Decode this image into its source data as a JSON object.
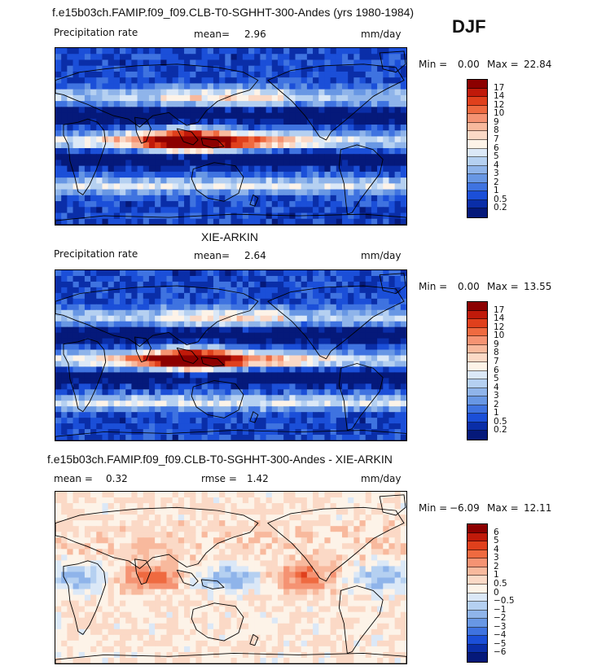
{
  "header": {
    "top_title": "f.e15b03ch.FAMIP.f09_f09.CLB-T0-SGHHT-300-Andes (yrs 1980-1984)",
    "season": "DJF"
  },
  "panels": [
    {
      "id": "model",
      "title": "",
      "left_label": "Precipitation rate",
      "mean_label": "mean=",
      "mean_value": "2.96",
      "units": "mm/day",
      "min_label": "Min =",
      "min_value": "0.00",
      "max_label": "Max =",
      "max_value": "22.84",
      "colorbar_levels": [
        "17",
        "14",
        "12",
        "10",
        "9",
        "8",
        "7",
        "6",
        "5",
        "4",
        "3",
        "2",
        "1",
        "0.5",
        "0.2"
      ],
      "colorbar_colors": [
        "#8c0000",
        "#c01a0a",
        "#e0401c",
        "#ef6a40",
        "#f59373",
        "#f8b99d",
        "#fbd9c6",
        "#fdf3e8",
        "#dbe8f7",
        "#b5d0f1",
        "#8fb4ea",
        "#6897e4",
        "#3f73e0",
        "#1b4fd8",
        "#0a2ea8",
        "#05197a"
      ],
      "global_mean": 2.96,
      "global_min": 0.0,
      "global_max": 22.84
    },
    {
      "id": "obs",
      "title": "XIE-ARKIN",
      "left_label": "Precipitation rate",
      "mean_label": "mean=",
      "mean_value": "2.64",
      "units": "mm/day",
      "min_label": "Min =",
      "min_value": "0.00",
      "max_label": "Max =",
      "max_value": "13.55",
      "colorbar_levels": [
        "17",
        "14",
        "12",
        "10",
        "9",
        "8",
        "7",
        "6",
        "5",
        "4",
        "3",
        "2",
        "1",
        "0.5",
        "0.2"
      ],
      "colorbar_colors": [
        "#8c0000",
        "#c01a0a",
        "#e0401c",
        "#ef6a40",
        "#f59373",
        "#f8b99d",
        "#fbd9c6",
        "#fdf3e8",
        "#dbe8f7",
        "#b5d0f1",
        "#8fb4ea",
        "#6897e4",
        "#3f73e0",
        "#1b4fd8",
        "#0a2ea8",
        "#05197a"
      ],
      "global_mean": 2.64,
      "global_min": 0.0,
      "global_max": 13.55
    },
    {
      "id": "diff",
      "title": "f.e15b03ch.FAMIP.f09_f09.CLB-T0-SGHHT-300-Andes - XIE-ARKIN",
      "left_label": "mean =",
      "mean_label": "",
      "mean_value": "0.32",
      "rmse_label": "rmse =",
      "rmse_value": "1.42",
      "units": "mm/day",
      "min_label": "Min =",
      "min_value": "−6.09",
      "max_label": "Max =",
      "max_value": "12.11",
      "colorbar_levels": [
        "6",
        "5",
        "4",
        "3",
        "2",
        "1",
        "0.5",
        "0",
        "−0.5",
        "−1",
        "−2",
        "−3",
        "−4",
        "−5",
        "−6"
      ],
      "colorbar_colors": [
        "#8c0000",
        "#c01a0a",
        "#e0401c",
        "#ef6a40",
        "#f59373",
        "#f8b99d",
        "#fbd9c6",
        "#fdf3e8",
        "#dbe8f7",
        "#b5d0f1",
        "#8fb4ea",
        "#6897e4",
        "#3f73e0",
        "#1b4fd8",
        "#0a2ea8",
        "#05197a"
      ],
      "global_mean": 0.32,
      "rmse": 1.42,
      "global_min": -6.09,
      "global_max": 12.11
    }
  ]
}
